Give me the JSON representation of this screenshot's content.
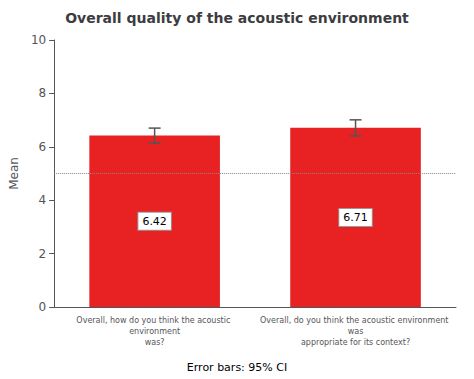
{
  "chart_data": {
    "type": "bar",
    "title": "Overall quality of the acoustic environment",
    "ylabel": "Mean",
    "annotations": [
      "Error bars: 95% CI"
    ],
    "categories": [
      "Overall, how do you think the acoustic environment\nwas?",
      "Overall, do you think the acoustic environment was\nappropriate for its context?"
    ],
    "values": [
      6.42,
      6.71
    ],
    "errors": [
      0.28,
      0.3
    ],
    "reference_lines": [
      5.0
    ],
    "color": "#e82222",
    "data_labels": true,
    "ylim": [
      0,
      10
    ],
    "yticks": [
      0,
      2,
      4,
      6,
      8,
      10
    ],
    "grid": false
  }
}
